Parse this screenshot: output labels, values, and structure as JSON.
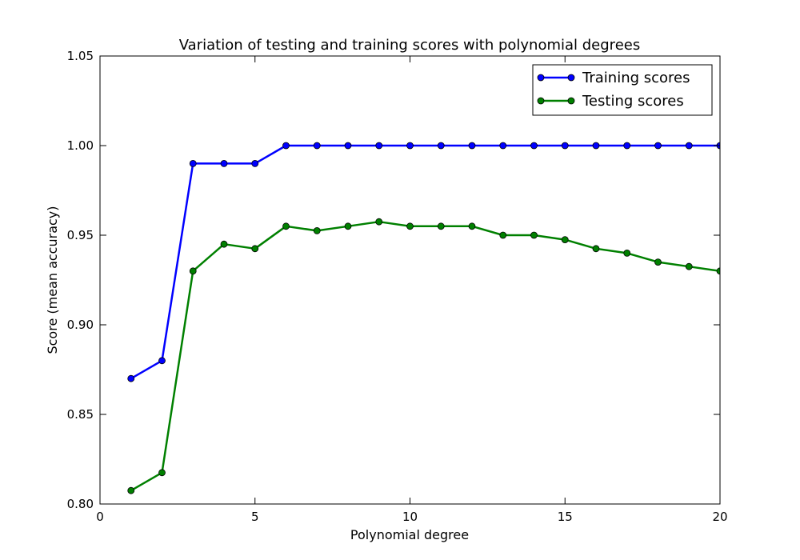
{
  "chart_data": {
    "type": "line",
    "title": "Variation of testing and training scores with polynomial degrees",
    "xlabel": "Polynomial degree",
    "ylabel": "Score (mean accuracy)",
    "xlim": [
      0,
      20
    ],
    "ylim": [
      0.8,
      1.05
    ],
    "xticks": [
      "0",
      "5",
      "10",
      "15",
      "20"
    ],
    "yticks": [
      "0.80",
      "0.85",
      "0.90",
      "0.95",
      "1.00",
      "1.05"
    ],
    "grid": false,
    "legend_position": "top-right",
    "series": [
      {
        "name": "Training scores",
        "color": "#0000ff",
        "x": [
          1,
          2,
          3,
          4,
          5,
          6,
          7,
          8,
          9,
          10,
          11,
          12,
          13,
          14,
          15,
          16,
          17,
          18,
          19,
          20
        ],
        "y": [
          0.87,
          0.88,
          0.99,
          0.99,
          0.99,
          1.0,
          1.0,
          1.0,
          1.0,
          1.0,
          1.0,
          1.0,
          1.0,
          1.0,
          1.0,
          1.0,
          1.0,
          1.0,
          1.0,
          1.0
        ]
      },
      {
        "name": "Testing scores",
        "color": "#008000",
        "x": [
          1,
          2,
          3,
          4,
          5,
          6,
          7,
          8,
          9,
          10,
          11,
          12,
          13,
          14,
          15,
          16,
          17,
          18,
          19,
          20
        ],
        "y": [
          0.8075,
          0.8175,
          0.93,
          0.945,
          0.9425,
          0.955,
          0.9525,
          0.955,
          0.9575,
          0.955,
          0.955,
          0.955,
          0.95,
          0.95,
          0.9475,
          0.9425,
          0.94,
          0.935,
          0.9325,
          0.93
        ]
      }
    ]
  }
}
